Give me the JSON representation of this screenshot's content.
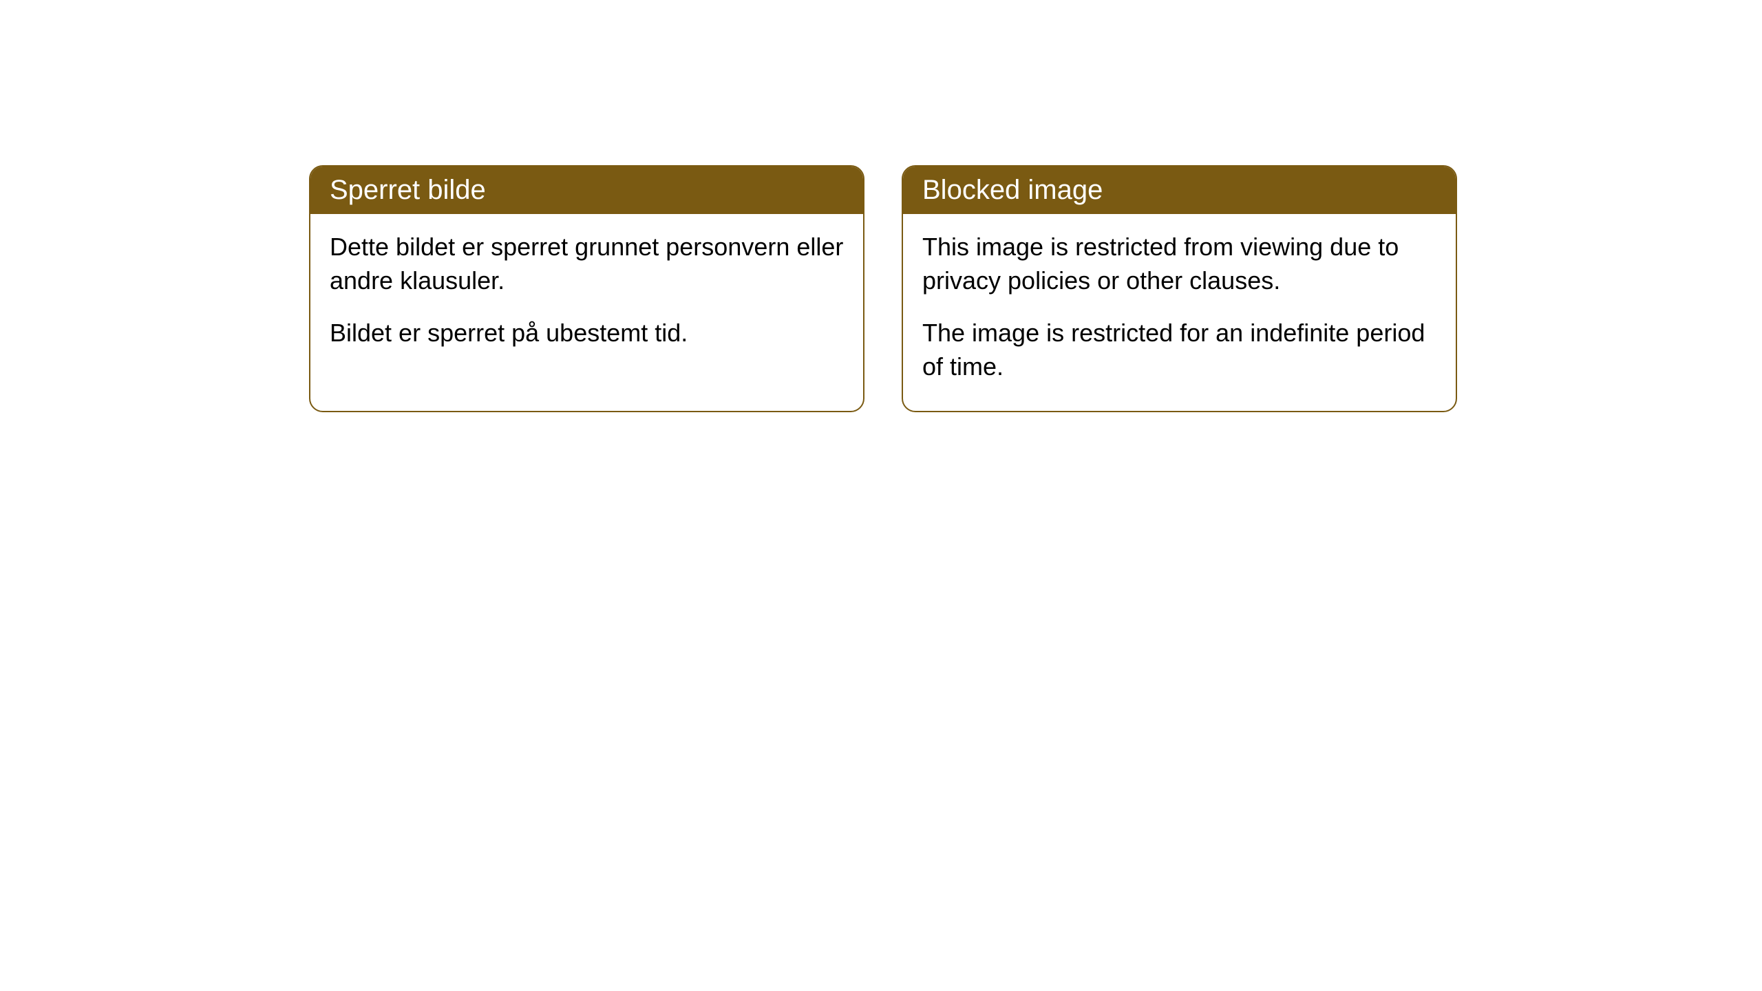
{
  "cards": [
    {
      "title": "Sperret bilde",
      "paragraph1": "Dette bildet er sperret grunnet personvern eller andre klausuler.",
      "paragraph2": "Bildet er sperret på ubestemt tid."
    },
    {
      "title": "Blocked image",
      "paragraph1": "This image is restricted from viewing due to privacy policies or other clauses.",
      "paragraph2": "The image is restricted for an indefinite period of time."
    }
  ],
  "styling": {
    "header_bg_color": "#7a5a12",
    "header_text_color": "#ffffff",
    "body_text_color": "#000000",
    "body_bg_color": "#ffffff",
    "border_color": "#7a5a12",
    "border_radius": 20,
    "header_fontsize": 40,
    "body_fontsize": 36
  }
}
